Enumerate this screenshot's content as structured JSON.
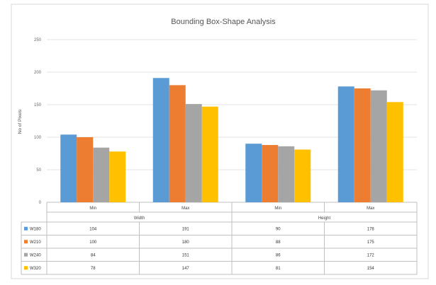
{
  "chart_data": {
    "type": "bar",
    "title": "Bounding Box-Shape Analysis",
    "ylabel": "No of Pixels",
    "ylim": [
      0,
      250
    ],
    "yticks": [
      0,
      50,
      100,
      150,
      200,
      250
    ],
    "grid": true,
    "legend": "table-below",
    "groups": [
      {
        "label": "Width",
        "categories": [
          "Min",
          "Max"
        ]
      },
      {
        "label": "Height",
        "categories": [
          "Min",
          "Max"
        ]
      }
    ],
    "categories": [
      "Min",
      "Max",
      "Min",
      "Max"
    ],
    "series": [
      {
        "name": "W180",
        "color": "#5b9bd5",
        "values": [
          104,
          191,
          90,
          178
        ]
      },
      {
        "name": "W210",
        "color": "#ed7d31",
        "values": [
          100,
          180,
          88,
          175
        ]
      },
      {
        "name": "W240",
        "color": "#a5a5a5",
        "values": [
          84,
          151,
          86,
          172
        ]
      },
      {
        "name": "W320",
        "color": "#ffc000",
        "values": [
          78,
          147,
          81,
          154
        ]
      }
    ]
  }
}
